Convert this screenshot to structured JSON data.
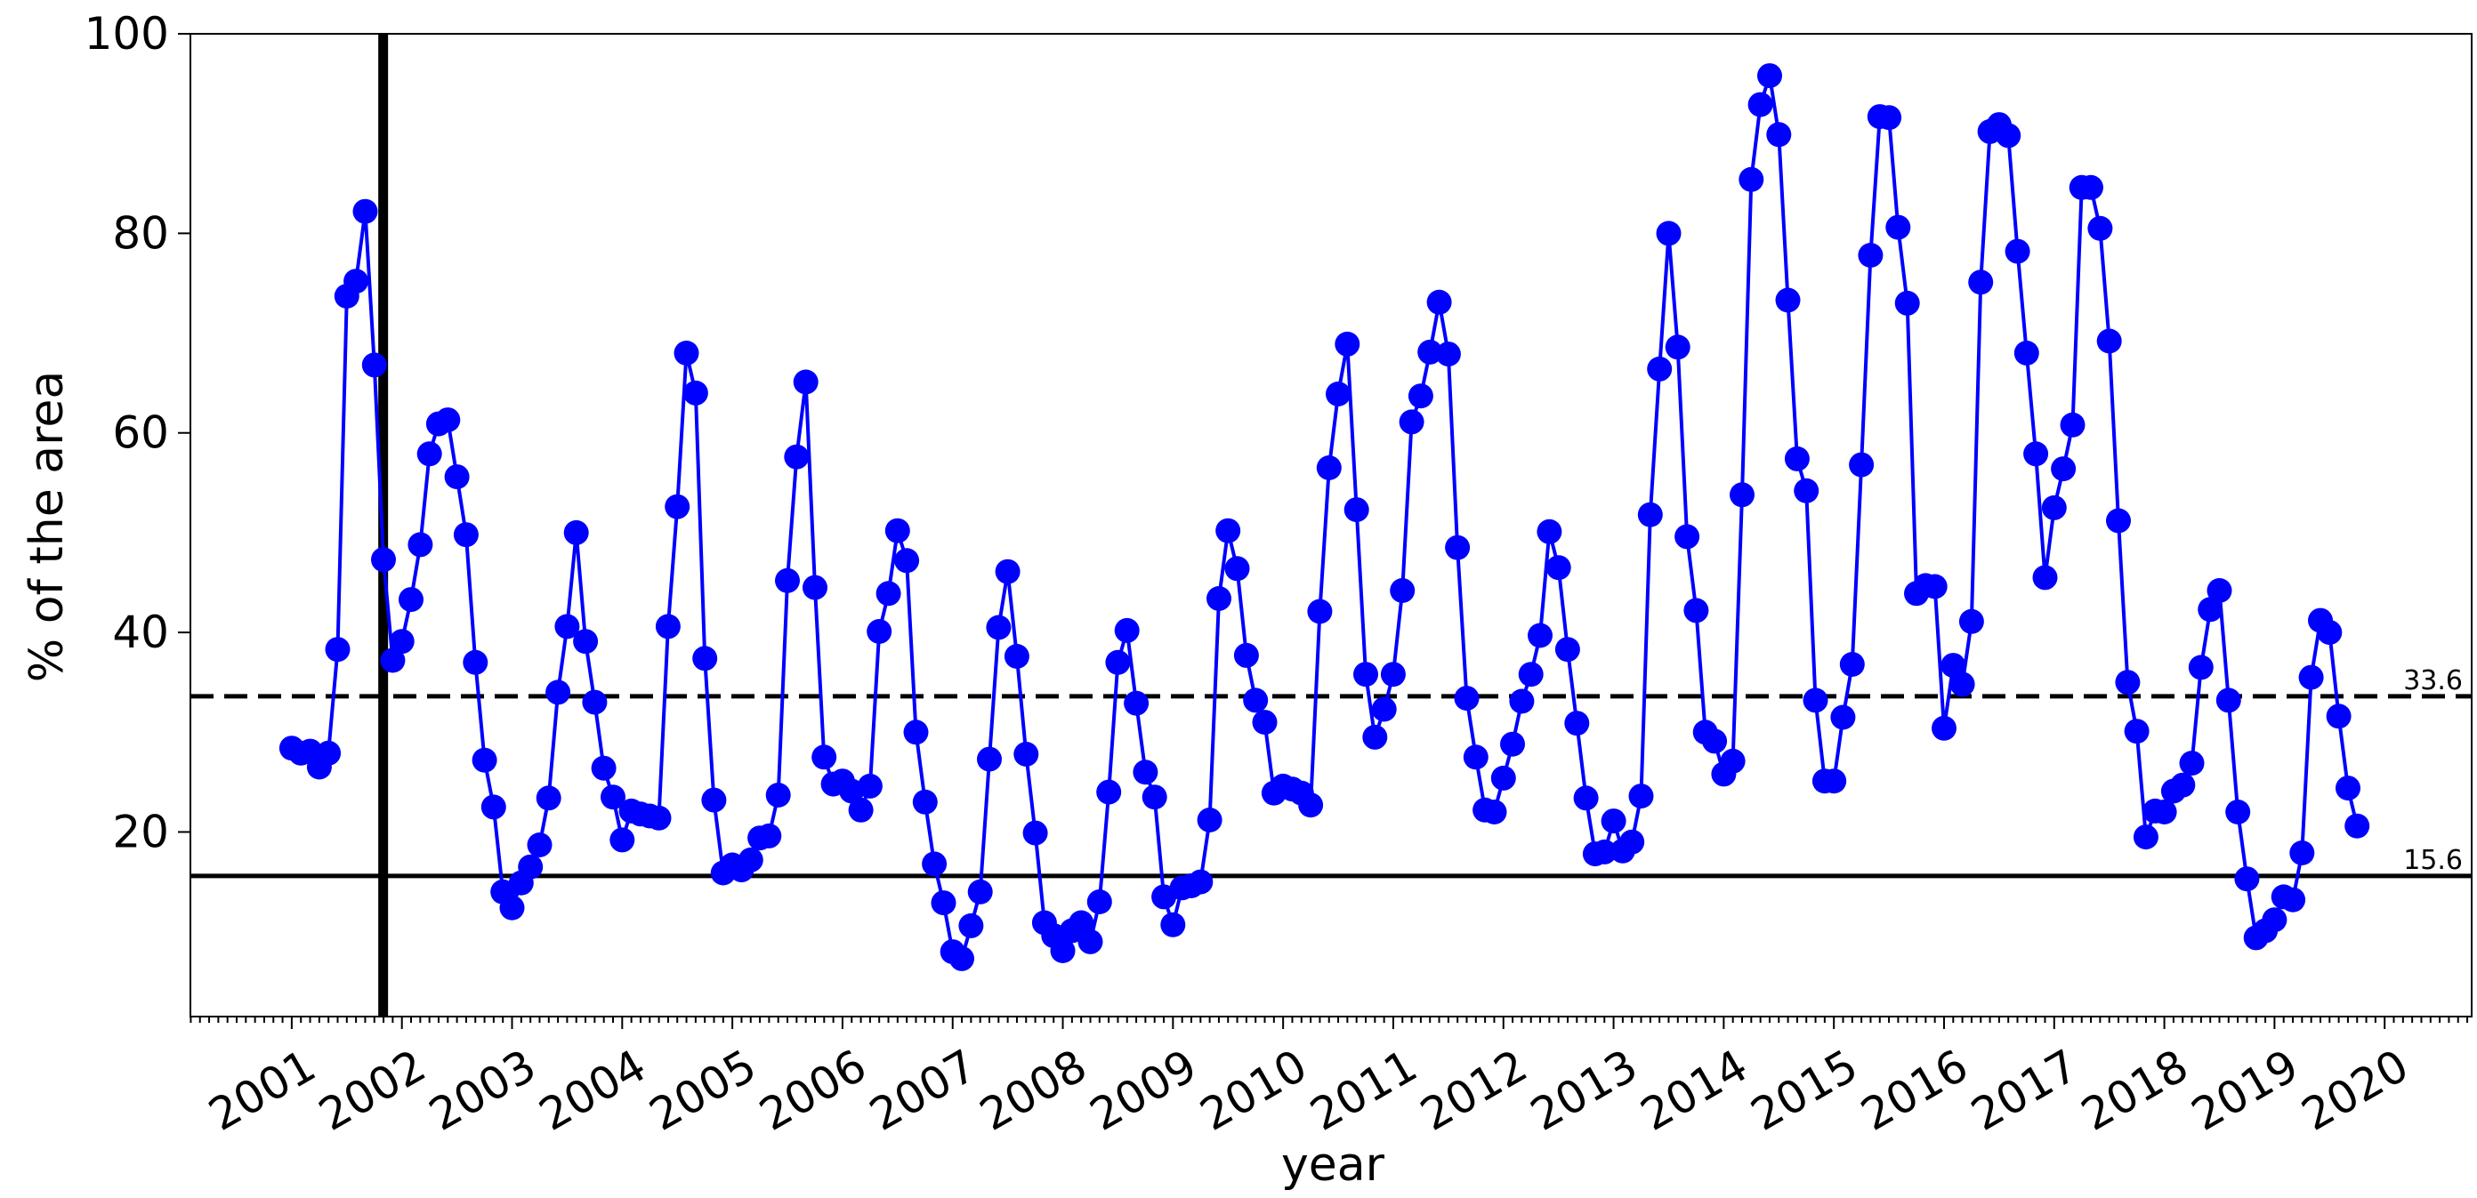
{
  "chart_data": {
    "type": "line",
    "xlabel": "year",
    "ylabel": "% of the area",
    "xlim": [
      2000.08,
      2020.79
    ],
    "ylim": [
      1.5,
      100
    ],
    "yticks": [
      20,
      40,
      60,
      80,
      100
    ],
    "xticks": [
      2001,
      2002,
      2003,
      2004,
      2005,
      2006,
      2007,
      2008,
      2009,
      2010,
      2011,
      2012,
      2013,
      2014,
      2015,
      2016,
      2017,
      2018,
      2019,
      2020
    ],
    "xtick_labels": [
      "2001",
      "2002",
      "2003",
      "2004",
      "2005",
      "2006",
      "2007",
      "2008",
      "2009",
      "2010",
      "2011",
      "2012",
      "2013",
      "2014",
      "2015",
      "2016",
      "2017",
      "2018",
      "2019",
      "2020"
    ],
    "colors": {
      "series": "#0000ff",
      "reference": "#000000"
    },
    "vline": {
      "x": 2001.83
    },
    "hlines": [
      {
        "y": 33.6,
        "style": "dashed",
        "label": "33.6"
      },
      {
        "y": 15.6,
        "style": "solid",
        "label": "15.6"
      }
    ],
    "series": [
      {
        "x": [
          2001.0,
          2001.083,
          2001.167,
          2001.25,
          2001.333,
          2001.417,
          2001.5,
          2001.583,
          2001.667,
          2001.75,
          2001.833,
          2001.917,
          2002.0,
          2002.083,
          2002.167,
          2002.25,
          2002.333,
          2002.417,
          2002.5,
          2002.583,
          2002.667,
          2002.75,
          2002.833,
          2002.917,
          2003.0,
          2003.083,
          2003.167,
          2003.25,
          2003.333,
          2003.417,
          2003.5,
          2003.583,
          2003.667,
          2003.75,
          2003.833,
          2003.917,
          2004.0,
          2004.083,
          2004.167,
          2004.25,
          2004.333,
          2004.417,
          2004.5,
          2004.583,
          2004.667,
          2004.75,
          2004.833,
          2004.917,
          2005.0,
          2005.083,
          2005.167,
          2005.25,
          2005.333,
          2005.417,
          2005.5,
          2005.583,
          2005.667,
          2005.75,
          2005.833,
          2005.917,
          2006.0,
          2006.083,
          2006.167,
          2006.25,
          2006.333,
          2006.417,
          2006.5,
          2006.583,
          2006.667,
          2006.75,
          2006.833,
          2006.917,
          2007.0,
          2007.083,
          2007.167,
          2007.25,
          2007.333,
          2007.417,
          2007.5,
          2007.583,
          2007.667,
          2007.75,
          2007.833,
          2007.917,
          2008.0,
          2008.083,
          2008.167,
          2008.25,
          2008.333,
          2008.417,
          2008.5,
          2008.583,
          2008.667,
          2008.75,
          2008.833,
          2008.917,
          2009.0,
          2009.083,
          2009.167,
          2009.25,
          2009.333,
          2009.417,
          2009.5,
          2009.583,
          2009.667,
          2009.75,
          2009.833,
          2009.917,
          2010.0,
          2010.083,
          2010.167,
          2010.25,
          2010.333,
          2010.417,
          2010.5,
          2010.583,
          2010.667,
          2010.75,
          2010.833,
          2010.917,
          2011.0,
          2011.083,
          2011.167,
          2011.25,
          2011.333,
          2011.417,
          2011.5,
          2011.583,
          2011.667,
          2011.75,
          2011.833,
          2011.917,
          2012.0,
          2012.083,
          2012.167,
          2012.25,
          2012.333,
          2012.417,
          2012.5,
          2012.583,
          2012.667,
          2012.75,
          2012.833,
          2012.917,
          2013.0,
          2013.083,
          2013.167,
          2013.25,
          2013.333,
          2013.417,
          2013.5,
          2013.583,
          2013.667,
          2013.75,
          2013.833,
          2013.917,
          2014.0,
          2014.083,
          2014.167,
          2014.25,
          2014.333,
          2014.417,
          2014.5,
          2014.583,
          2014.667,
          2014.75,
          2014.833,
          2014.917,
          2015.0,
          2015.083,
          2015.167,
          2015.25,
          2015.333,
          2015.417,
          2015.5,
          2015.583,
          2015.667,
          2015.75,
          2015.833,
          2015.917,
          2016.0,
          2016.083,
          2016.167,
          2016.25,
          2016.333,
          2016.417,
          2016.5,
          2016.583,
          2016.667,
          2016.75,
          2016.833,
          2016.917,
          2017.0,
          2017.083,
          2017.167,
          2017.25,
          2017.333,
          2017.417,
          2017.5,
          2017.583,
          2017.667,
          2017.75,
          2017.833,
          2017.917,
          2018.0,
          2018.083,
          2018.167,
          2018.25,
          2018.333,
          2018.417,
          2018.5,
          2018.583,
          2018.667,
          2018.75,
          2018.833,
          2018.917,
          2019.0,
          2019.083,
          2019.167,
          2019.25,
          2019.333,
          2019.417,
          2019.5,
          2019.583,
          2019.667,
          2019.75
        ],
        "y": [
          28.4,
          27.9,
          28.1,
          26.5,
          27.9,
          38.3,
          73.7,
          75.2,
          82.2,
          66.8,
          47.3,
          37.2,
          39.1,
          43.3,
          48.8,
          57.9,
          60.9,
          61.3,
          55.6,
          49.8,
          37.0,
          27.2,
          22.5,
          14.0,
          12.4,
          14.9,
          16.5,
          18.7,
          23.4,
          34.0,
          40.6,
          50.0,
          39.1,
          33.0,
          26.4,
          23.5,
          19.2,
          22.1,
          21.8,
          21.6,
          21.4,
          40.6,
          52.6,
          68.0,
          64.0,
          37.4,
          23.2,
          15.9,
          16.7,
          16.2,
          17.2,
          19.4,
          19.6,
          23.7,
          45.2,
          57.6,
          65.1,
          44.5,
          27.5,
          24.8,
          25.1,
          24.1,
          22.2,
          24.6,
          40.1,
          43.9,
          50.2,
          47.2,
          30.0,
          23.0,
          16.8,
          12.9,
          8.0,
          7.3,
          10.6,
          14.0,
          27.3,
          40.5,
          46.1,
          37.6,
          27.8,
          19.9,
          10.9,
          9.6,
          8.1,
          10.1,
          10.9,
          9.0,
          13.0,
          24.0,
          37.0,
          40.2,
          32.9,
          26.0,
          23.5,
          13.5,
          10.7,
          14.4,
          14.6,
          15.0,
          21.2,
          43.4,
          50.2,
          46.4,
          37.7,
          33.2,
          31.0,
          23.9,
          24.6,
          24.3,
          23.9,
          22.7,
          42.1,
          56.5,
          63.9,
          68.9,
          52.3,
          35.8,
          29.5,
          32.3,
          35.8,
          44.2,
          61.1,
          63.7,
          68.1,
          73.1,
          67.9,
          48.5,
          33.4,
          27.5,
          22.2,
          22.0,
          25.4,
          28.8,
          33.1,
          35.8,
          39.7,
          50.1,
          46.5,
          38.3,
          30.9,
          23.4,
          17.8,
          18.0,
          21.1,
          18.1,
          19.0,
          23.6,
          51.8,
          66.4,
          80.0,
          68.6,
          49.6,
          42.2,
          30.0,
          29.1,
          25.8,
          27.1,
          53.8,
          85.4,
          92.9,
          95.8,
          89.9,
          73.3,
          57.4,
          54.2,
          33.2,
          25.1,
          25.1,
          31.5,
          36.8,
          56.8,
          77.8,
          91.7,
          91.6,
          80.6,
          73.0,
          43.9,
          44.7,
          44.6,
          30.4,
          36.7,
          34.8,
          41.1,
          75.1,
          90.2,
          90.9,
          89.8,
          78.2,
          68.0,
          57.9,
          45.5,
          52.5,
          56.4,
          60.8,
          84.6,
          84.6,
          80.5,
          69.2,
          51.2,
          35.0,
          30.1,
          19.5,
          22.1,
          22.0,
          24.1,
          24.7,
          26.9,
          36.5,
          42.3,
          44.2,
          33.2,
          22.0,
          15.3,
          9.4,
          10.1,
          11.2,
          13.5,
          13.2,
          17.9,
          35.5,
          41.2,
          40.0,
          31.6,
          24.4,
          20.6
        ]
      }
    ]
  }
}
